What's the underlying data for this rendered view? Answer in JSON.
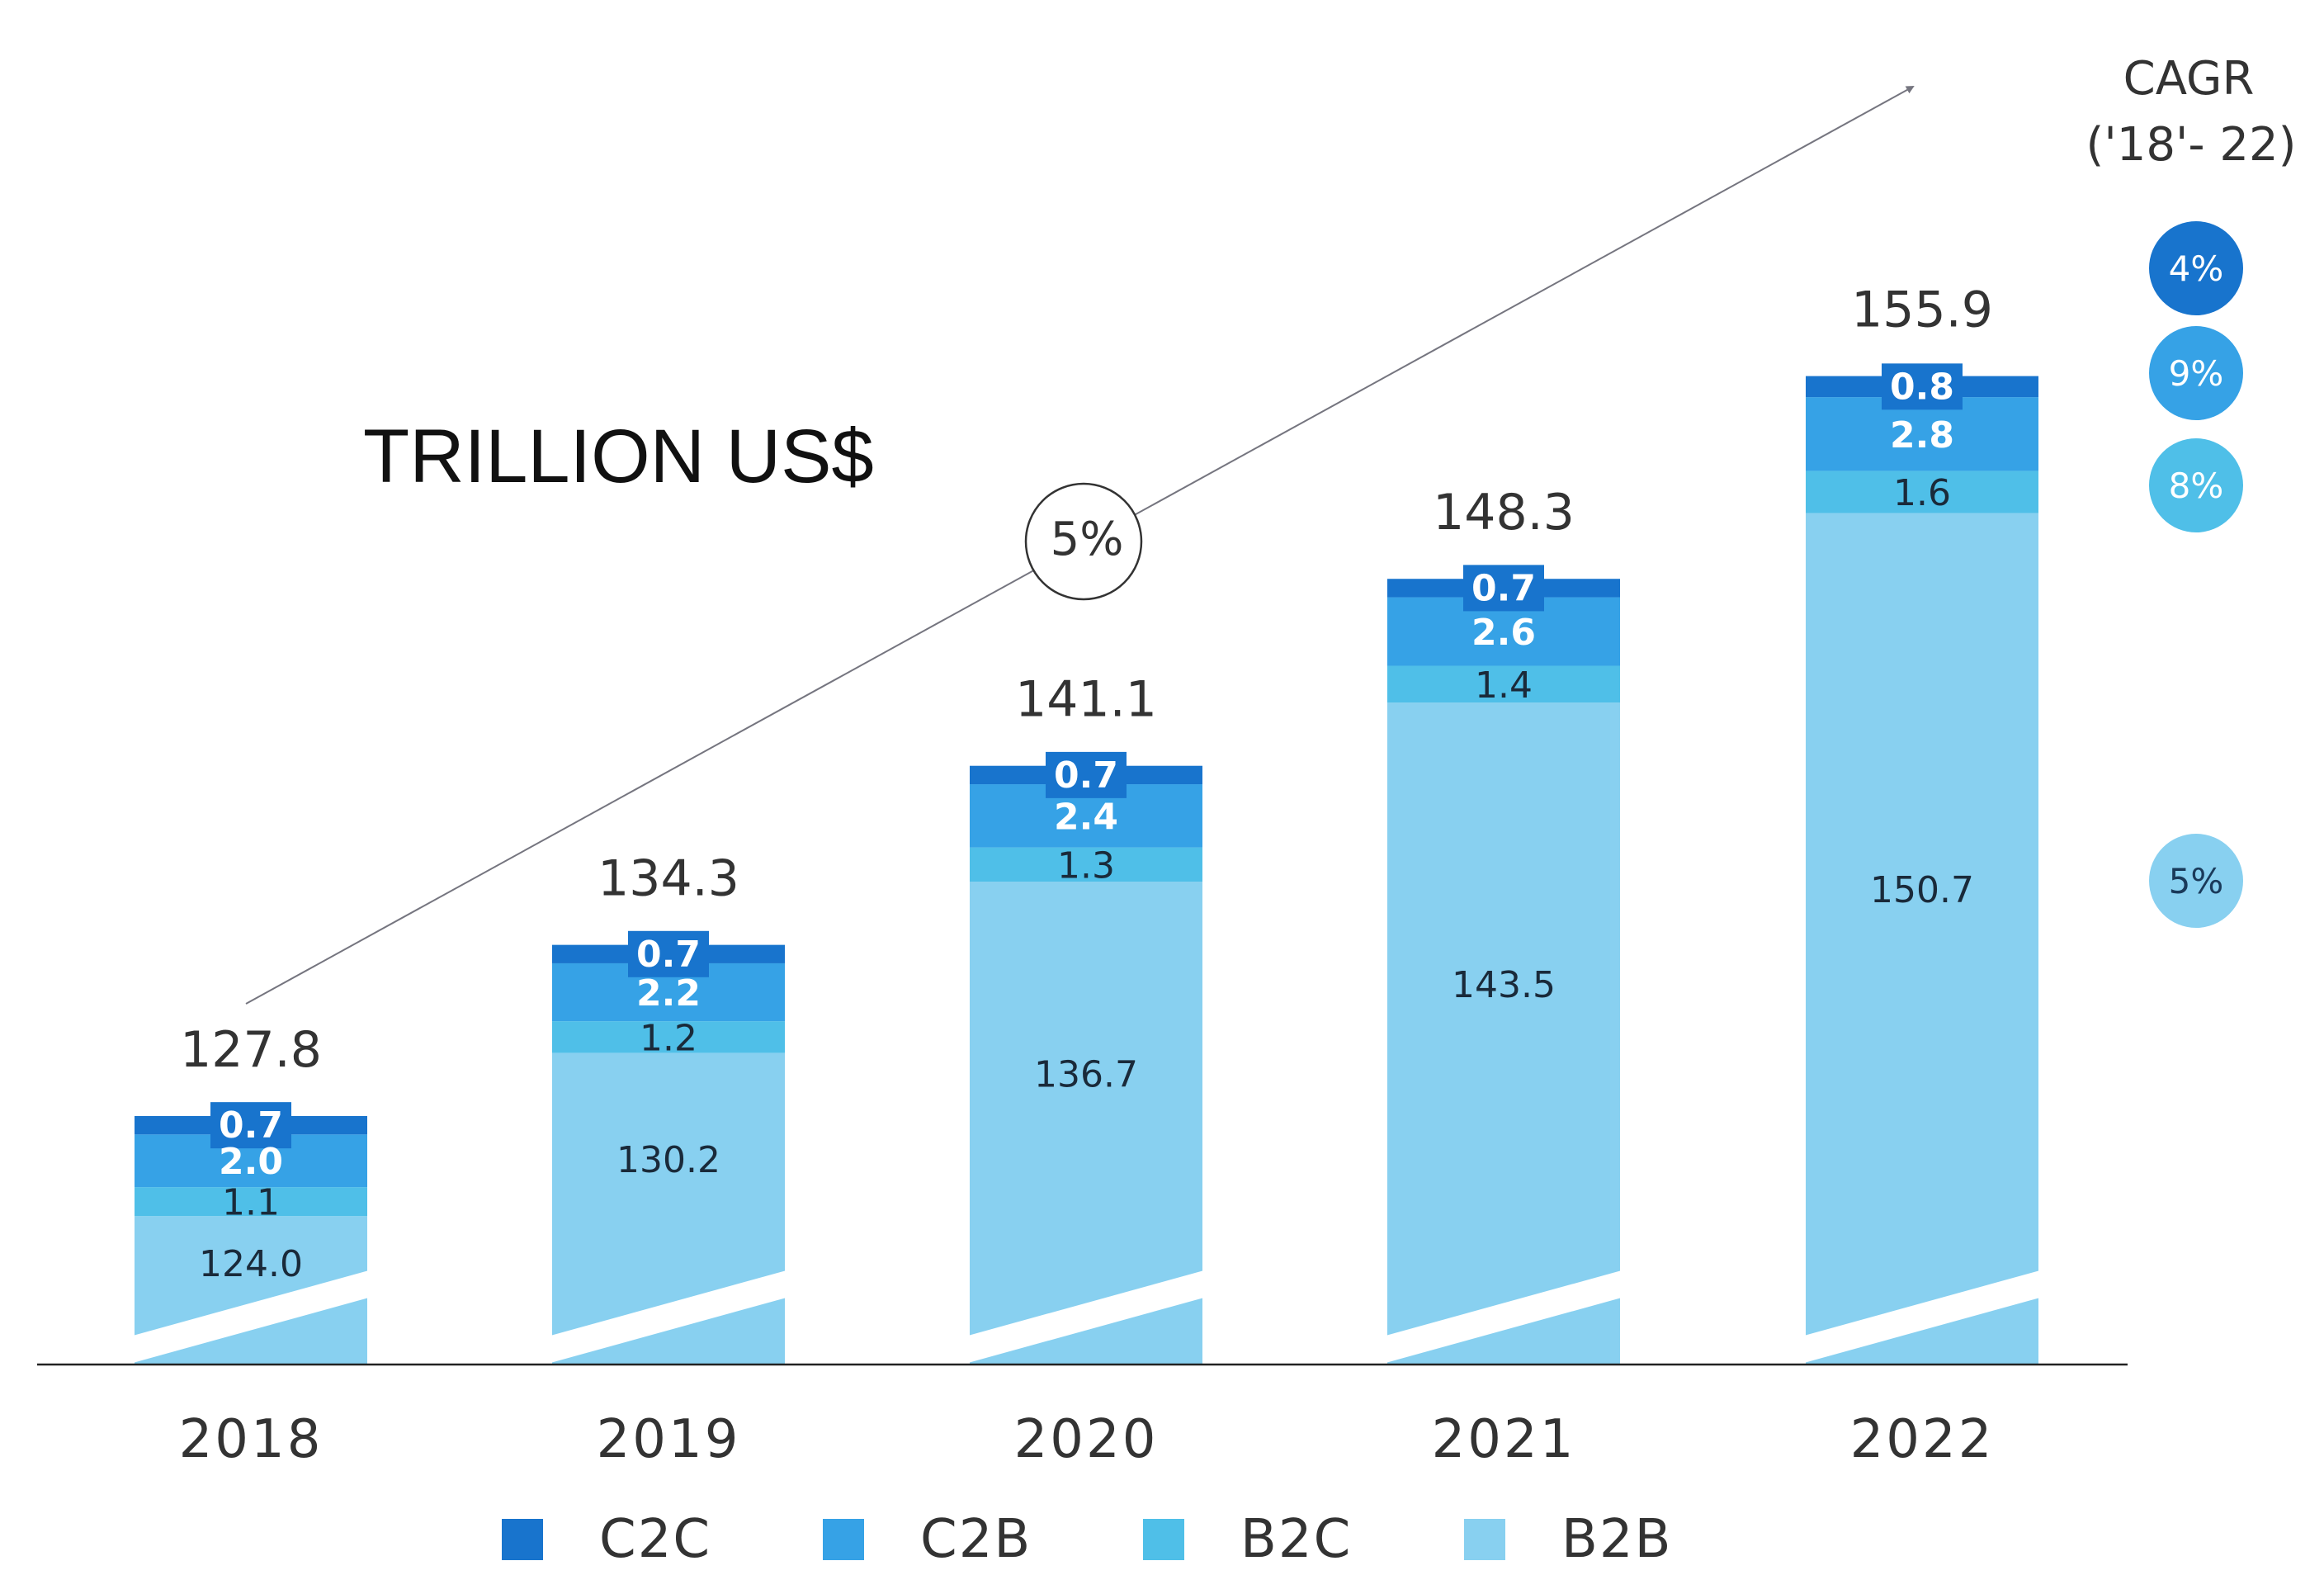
{
  "chart_data": {
    "type": "bar",
    "stacked": true,
    "unit_label": "TRILLION US$",
    "categories": [
      "2018",
      "2019",
      "2020",
      "2021",
      "2022"
    ],
    "series": [
      {
        "name": "B2B",
        "values": [
          124.0,
          130.2,
          136.7,
          143.5,
          150.7
        ],
        "color": "#88d0f0"
      },
      {
        "name": "B2C",
        "values": [
          1.1,
          1.2,
          1.3,
          1.4,
          1.6
        ],
        "color": "#4fbfe8"
      },
      {
        "name": "C2B",
        "values": [
          2.0,
          2.2,
          2.4,
          2.6,
          2.8
        ],
        "color": "#36a2e6"
      },
      {
        "name": "C2C",
        "values": [
          0.7,
          0.7,
          0.7,
          0.7,
          0.8
        ],
        "color": "#1874cd"
      }
    ],
    "totals": [
      "127.8",
      "134.3",
      "141.1",
      "148.3",
      "155.9"
    ],
    "value_labels": {
      "B2B": [
        "124.0",
        "130.2",
        "136.7",
        "143.5",
        "150.7"
      ],
      "B2C": [
        "1.1",
        "1.2",
        "1.3",
        "1.4",
        "1.6"
      ],
      "C2B": [
        "2.0",
        "2.2",
        "2.4",
        "2.6",
        "2.8"
      ],
      "C2C": [
        "0.7",
        "0.7",
        "0.7",
        "0.7",
        "0.8"
      ]
    },
    "legend_position": "bottom",
    "axis_break": true,
    "total_cagr": "5%",
    "cagr_header": [
      "CAGR",
      "('18'- 22)"
    ],
    "cagr": [
      {
        "series": "C2C",
        "label": "4%",
        "color": "#1874cd"
      },
      {
        "series": "C2B",
        "label": "9%",
        "color": "#36a2e6"
      },
      {
        "series": "B2C",
        "label": "8%",
        "color": "#4fbfe8"
      },
      {
        "series": "B2B",
        "label": "5%",
        "color": "#88d0f0"
      }
    ]
  }
}
